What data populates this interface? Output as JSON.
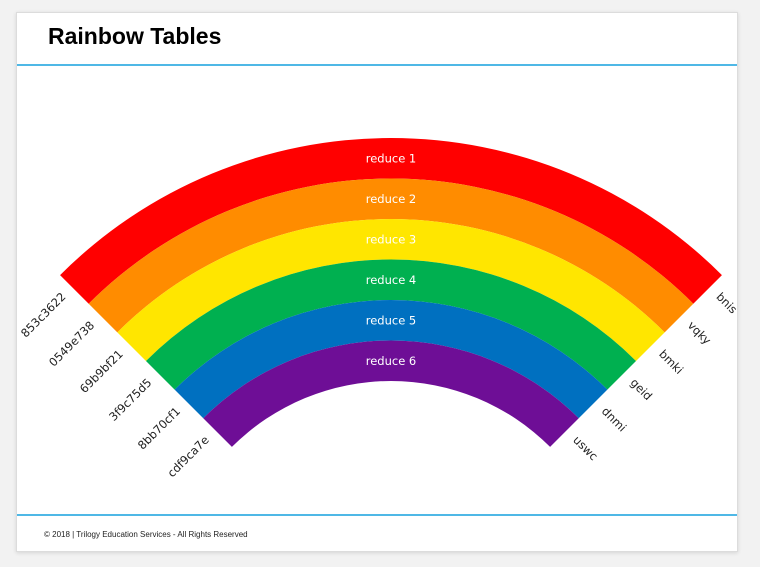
{
  "slide": {
    "title": "Rainbow Tables",
    "footer": "© 2018 | Trilogy Education Services - All Rights Reserved"
  },
  "colors": {
    "accent_rule": "#4fb8e6",
    "bands": [
      "#ff0000",
      "#ff8c00",
      "#ffe600",
      "#00b050",
      "#0070c0",
      "#6e0e96"
    ]
  },
  "rainbow": {
    "bands": [
      {
        "label": "reduce 1",
        "left": "853c3622",
        "right": "bnis"
      },
      {
        "label": "reduce 2",
        "left": "0549e738",
        "right": "vqky"
      },
      {
        "label": "reduce 3",
        "left": "69b9bf21",
        "right": "bmki"
      },
      {
        "label": "reduce 4",
        "left": "3f9c75d5",
        "right": "geid"
      },
      {
        "label": "reduce 5",
        "left": "8bb70cf1",
        "right": "dnmi"
      },
      {
        "label": "reduce 6",
        "left": "cdf9ca7e",
        "right": "uswc"
      }
    ]
  }
}
